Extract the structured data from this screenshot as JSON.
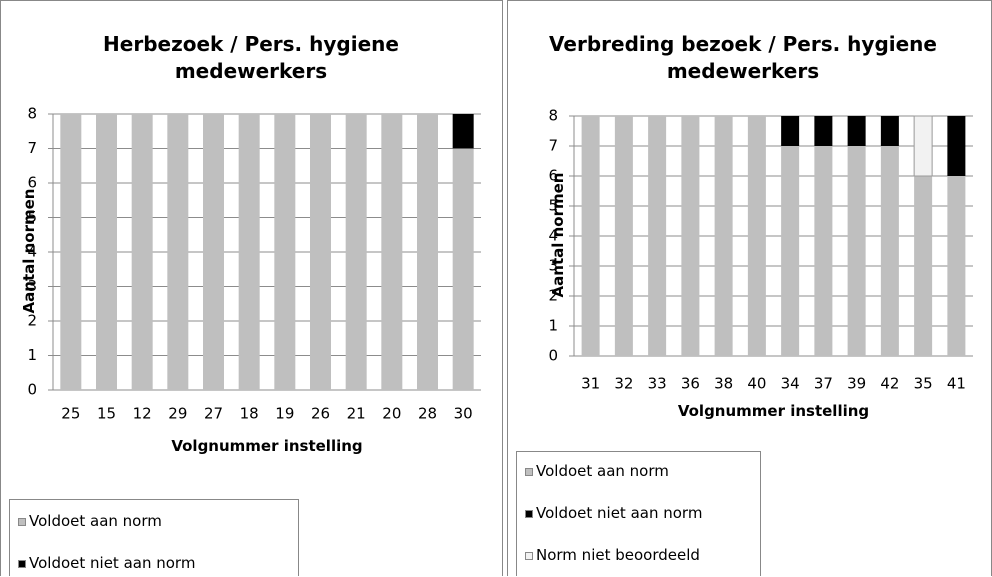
{
  "chart_data": [
    {
      "type": "stacked_bar",
      "title": "Herbezoek / Pers. hygiene medewerkers",
      "x_label": "Volgnummer  instelling",
      "y_label": "Aantal normen",
      "categories": [
        "25",
        "15",
        "12",
        "29",
        "27",
        "18",
        "19",
        "26",
        "21",
        "20",
        "28",
        "30"
      ],
      "series": [
        {
          "name": "Voldoet aan norm",
          "color": "#bfbfbf",
          "values": [
            8,
            8,
            8,
            8,
            8,
            8,
            8,
            8,
            8,
            8,
            8,
            7
          ]
        },
        {
          "name": "Voldoet niet aan norm",
          "color": "#000000",
          "values": [
            0,
            0,
            0,
            0,
            0,
            0,
            0,
            0,
            0,
            0,
            0,
            1
          ]
        }
      ],
      "ylim": [
        0,
        8
      ],
      "yticks": [
        0,
        1,
        2,
        3,
        4,
        5,
        6,
        7,
        8
      ],
      "grid": true,
      "legend": "bottom"
    },
    {
      "type": "stacked_bar",
      "title": "Verbreding bezoek / Pers. hygiene medewerkers",
      "x_label": "Volgnummer  instelling",
      "y_label": "Aantal normen",
      "categories": [
        "31",
        "32",
        "33",
        "36",
        "38",
        "40",
        "34",
        "37",
        "39",
        "42",
        "35",
        "41"
      ],
      "series": [
        {
          "name": "Voldoet aan norm",
          "color": "#bfbfbf",
          "values": [
            8,
            8,
            8,
            8,
            8,
            8,
            7,
            7,
            7,
            7,
            6,
            6
          ]
        },
        {
          "name": "Voldoet niet aan norm",
          "color": "#000000",
          "values": [
            0,
            0,
            0,
            0,
            0,
            0,
            1,
            1,
            1,
            1,
            0,
            2
          ]
        },
        {
          "name": "Norm niet beoordeeld",
          "color": "#f2f2f2",
          "values": [
            0,
            0,
            0,
            0,
            0,
            0,
            0,
            0,
            0,
            0,
            2,
            0
          ]
        }
      ],
      "ylim": [
        0,
        8
      ],
      "yticks": [
        0,
        1,
        2,
        3,
        4,
        5,
        6,
        7,
        8
      ],
      "grid": true,
      "legend": "bottom"
    }
  ]
}
